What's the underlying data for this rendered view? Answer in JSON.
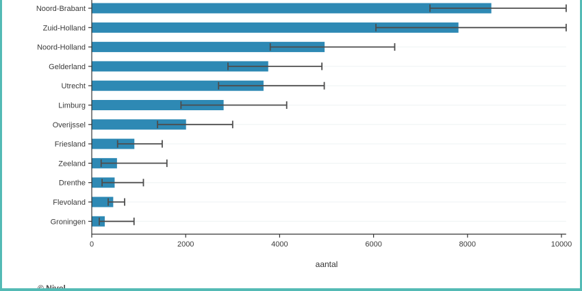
{
  "frame": {
    "border_color": "#54bab5",
    "background": "#ffffff"
  },
  "footer": {
    "credit": "© Nivel"
  },
  "chart_data": {
    "type": "bar",
    "orientation": "horizontal",
    "title": "",
    "xlabel": "aantal",
    "ylabel": "",
    "legend": "none",
    "grid": "faint horizontal row lines",
    "x_ticks": [
      0,
      2000,
      4000,
      6000,
      8000,
      10000
    ],
    "xlim": [
      0,
      10100
    ],
    "bar_color": "#2e89b4",
    "error_color": "#4d4d4d",
    "axis_color": "#333333",
    "gridline_color": "#eef2f3",
    "categories": [
      "Noord-Brabant",
      "Zuid-Holland",
      "Noord-Holland",
      "Gelderland",
      "Utrecht",
      "Limburg",
      "Overijssel",
      "Friesland",
      "Zeeland",
      "Drenthe",
      "Flevoland",
      "Groningen"
    ],
    "values": [
      8500,
      7800,
      4950,
      3750,
      3650,
      2800,
      2000,
      900,
      530,
      480,
      450,
      270
    ],
    "error_low": [
      7200,
      6050,
      3800,
      2900,
      2700,
      1900,
      1400,
      550,
      200,
      220,
      350,
      160
    ],
    "error_high": [
      10100,
      10100,
      6450,
      4900,
      4950,
      4150,
      3000,
      1500,
      1600,
      1100,
      700,
      900
    ]
  }
}
